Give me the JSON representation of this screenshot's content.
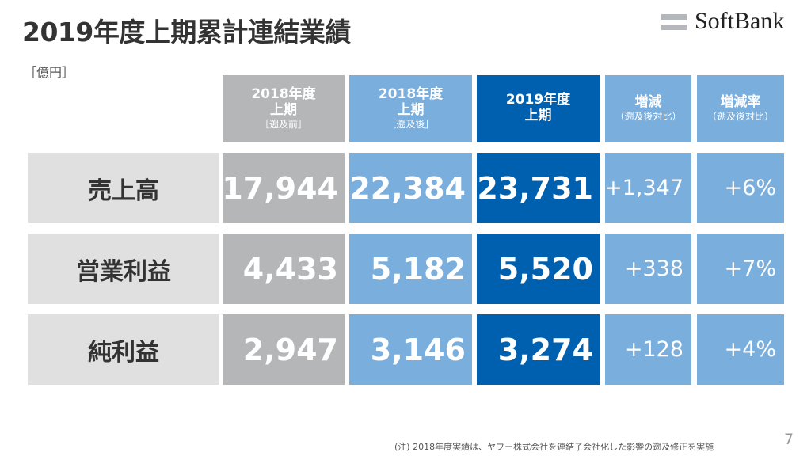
{
  "title": "2019年度上期累計連結業績",
  "unit": "［億円］",
  "logo": "SoftBank",
  "headers": [
    {
      "line1": "2018年度",
      "line2": "上期",
      "sub": "［遡及前］"
    },
    {
      "line1": "2018年度",
      "line2": "上期",
      "sub": "［遡及後］"
    },
    {
      "line1": "2019年度",
      "line2": "上期",
      "sub": ""
    },
    {
      "line1": "増減",
      "line2": "",
      "sub": "（遡及後対比）"
    },
    {
      "line1": "増減率",
      "line2": "",
      "sub": "（遡及後対比）"
    }
  ],
  "rows": [
    {
      "label": "売上高",
      "fy18_before": "17,944",
      "fy18_after": "22,384",
      "fy19": "23,731",
      "change": "+1,347",
      "rate": "+6%"
    },
    {
      "label": "営業利益",
      "fy18_before": "4,433",
      "fy18_after": "5,182",
      "fy19": "5,520",
      "change": "+338",
      "rate": "+7%"
    },
    {
      "label": "純利益",
      "fy18_before": "2,947",
      "fy18_after": "3,146",
      "fy19": "3,274",
      "change": "+128",
      "rate": "+4%"
    }
  ],
  "colors": {
    "before": "#b4b6b8",
    "after": "#7aaedd",
    "current": "#0060b0",
    "label_bg": "#e0e0e0"
  },
  "note": "(注) 2018年度実績は、ヤフー株式会社を連結子会社化した影響の遡及修正を実施",
  "page_number": "7"
}
